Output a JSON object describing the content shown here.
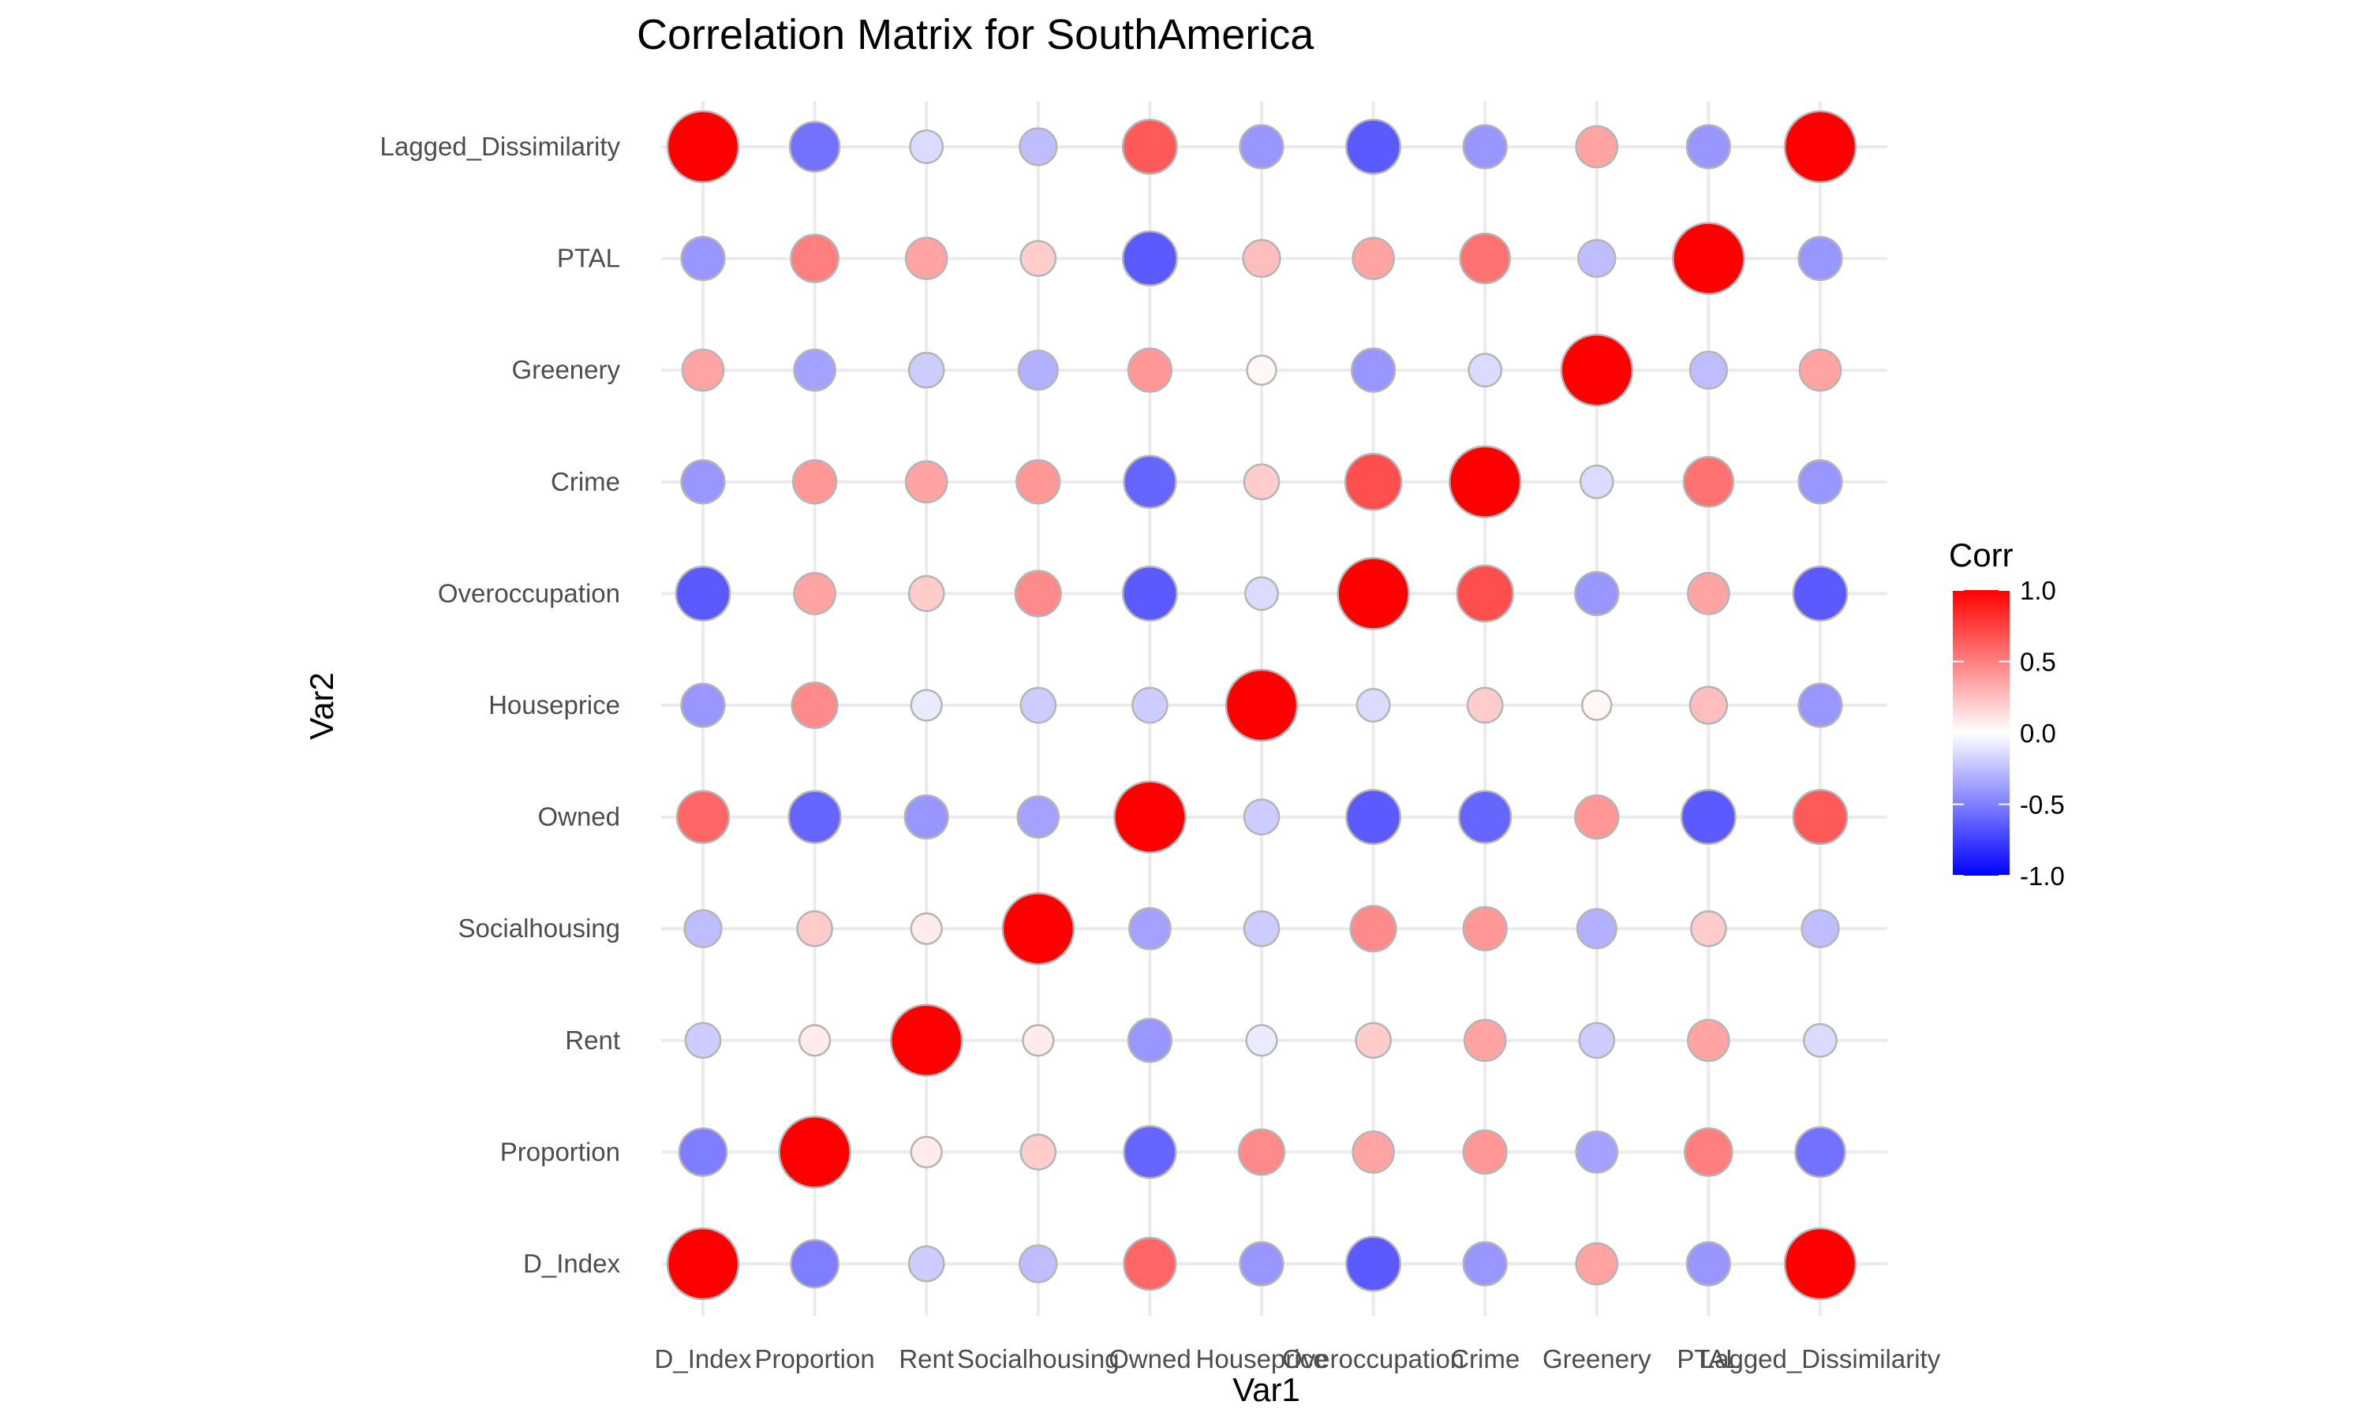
{
  "chart_data": {
    "type": "scatter",
    "subtype": "correlation-bubble-matrix",
    "title": "Correlation Matrix for SouthAmerica",
    "xlabel": "Var1",
    "ylabel": "Var2",
    "variables": [
      "D_Index",
      "Proportion",
      "Rent",
      "Socialhousing",
      "Owned",
      "Houseprice",
      "Overoccupation",
      "Crime",
      "Greenery",
      "PTAL",
      "Lagged_Dissimilarity"
    ],
    "values": [
      [
        1.0,
        -0.45,
        -0.15,
        -0.2,
        0.55,
        -0.35,
        -0.6,
        -0.35,
        0.3,
        -0.35,
        1.0
      ],
      [
        -0.45,
        1.0,
        0.05,
        0.15,
        -0.55,
        0.4,
        0.3,
        0.35,
        -0.3,
        0.45,
        -0.5
      ],
      [
        -0.15,
        0.05,
        1.0,
        0.05,
        -0.35,
        -0.05,
        0.15,
        0.3,
        -0.15,
        0.3,
        -0.1
      ],
      [
        -0.2,
        0.15,
        0.05,
        1.0,
        -0.3,
        -0.15,
        0.4,
        0.35,
        -0.25,
        0.15,
        -0.2
      ],
      [
        0.55,
        -0.55,
        -0.35,
        -0.3,
        1.0,
        -0.15,
        -0.6,
        -0.55,
        0.35,
        -0.6,
        0.6
      ],
      [
        -0.35,
        0.4,
        -0.05,
        -0.15,
        -0.15,
        1.0,
        -0.1,
        0.15,
        0.02,
        0.2,
        -0.35
      ],
      [
        -0.6,
        0.3,
        0.15,
        0.4,
        -0.6,
        -0.1,
        1.0,
        0.65,
        -0.35,
        0.3,
        -0.6
      ],
      [
        -0.35,
        0.35,
        0.3,
        0.35,
        -0.55,
        0.15,
        0.65,
        1.0,
        -0.1,
        0.5,
        -0.35
      ],
      [
        0.3,
        -0.3,
        -0.15,
        -0.25,
        0.35,
        0.02,
        -0.35,
        -0.1,
        1.0,
        -0.2,
        0.3
      ],
      [
        -0.35,
        0.45,
        0.3,
        0.15,
        -0.6,
        0.2,
        0.3,
        0.5,
        -0.2,
        1.0,
        -0.35
      ],
      [
        1.0,
        -0.5,
        -0.1,
        -0.2,
        0.6,
        -0.35,
        -0.6,
        -0.35,
        0.3,
        -0.35,
        1.0
      ]
    ],
    "legend": {
      "title": "Corr",
      "ticks": [
        "1.0",
        "0.5",
        "0.0",
        "-0.5",
        "-1.0"
      ],
      "placement": "right",
      "color_low": "#0000ff",
      "color_mid": "#ffffff",
      "color_high": "#ff0000"
    },
    "xlim": [
      -1,
      1
    ],
    "grid": true
  }
}
